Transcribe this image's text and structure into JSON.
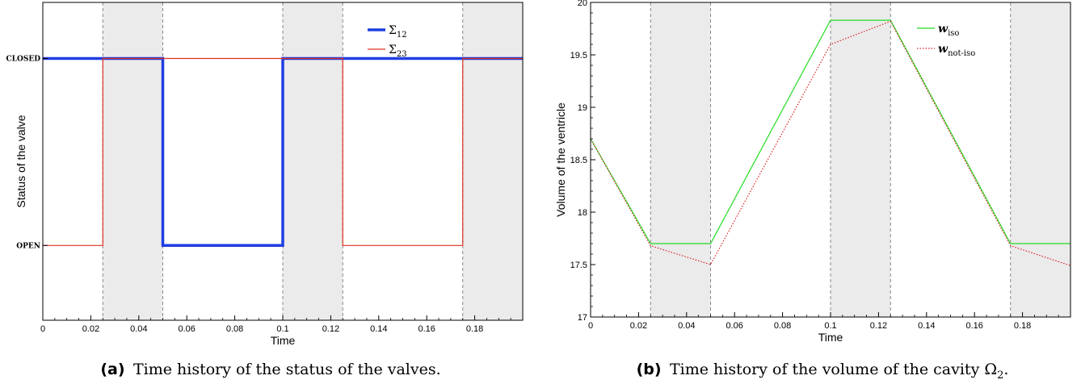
{
  "captions": [
    {
      "label": "(a)",
      "text": "Time history of the status of the valves."
    },
    {
      "label": "(b)",
      "text": "Time history of the volume of the cavity Ω",
      "sub": "2",
      "end": "."
    }
  ],
  "chart_data": [
    {
      "type": "line",
      "xlabel": "Time",
      "ylabel": "Status of the valve",
      "xlim": [
        0,
        0.2
      ],
      "x_ticks": [
        "0",
        "0.02",
        "0.04",
        "0.06",
        "0.08",
        "0.1",
        "0.12",
        "0.14",
        "0.16",
        "0.18"
      ],
      "x_tick_values": [
        0,
        0.02,
        0.04,
        0.06,
        0.08,
        0.1,
        0.12,
        0.14,
        0.16,
        0.18
      ],
      "ylim": [
        -0.4,
        1.3
      ],
      "y_categories": [
        {
          "label": "CLOSED",
          "value": 1
        },
        {
          "label": "OPEN",
          "value": 0
        }
      ],
      "shaded_intervals": [
        [
          0.025,
          0.05
        ],
        [
          0.1,
          0.125
        ],
        [
          0.175,
          0.2
        ]
      ],
      "vertical_dashed_lines": [
        0.025,
        0.05,
        0.1,
        0.125,
        0.175
      ],
      "legend_position": "top-right",
      "series": [
        {
          "name": "Σ",
          "name_sub": "12",
          "color": "#1f3fe0",
          "style": "solid-thick",
          "x": [
            0,
            0.05,
            0.05,
            0.1,
            0.1,
            0.2
          ],
          "y": [
            1,
            1,
            0,
            0,
            1,
            1
          ]
        },
        {
          "name": "Σ",
          "name_sub": "23",
          "color": "#e03020",
          "style": "solid",
          "x": [
            0,
            0.025,
            0.025,
            0.125,
            0.125,
            0.175,
            0.175,
            0.2
          ],
          "y": [
            0,
            0,
            1,
            1,
            0,
            0,
            1,
            1
          ]
        }
      ]
    },
    {
      "type": "line",
      "xlabel": "Time",
      "ylabel": "Volume of the ventricle",
      "xlim": [
        0,
        0.2
      ],
      "x_ticks": [
        "0",
        "0.02",
        "0.04",
        "0.06",
        "0.08",
        "0.1",
        "0.12",
        "0.14",
        "0.16",
        "0.18"
      ],
      "x_tick_values": [
        0,
        0.02,
        0.04,
        0.06,
        0.08,
        0.1,
        0.12,
        0.14,
        0.16,
        0.18
      ],
      "ylim": [
        17,
        20
      ],
      "y_ticks": [
        "17",
        "17.5",
        "18",
        "18.5",
        "19",
        "19.5",
        "20"
      ],
      "y_tick_values": [
        17,
        17.5,
        18,
        18.5,
        19,
        19.5,
        20
      ],
      "shaded_intervals": [
        [
          0.025,
          0.05
        ],
        [
          0.1,
          0.125
        ],
        [
          0.175,
          0.2
        ]
      ],
      "vertical_dashed_lines": [
        0.025,
        0.05,
        0.1,
        0.125,
        0.175
      ],
      "legend_position": "top-right",
      "series": [
        {
          "name": "w",
          "name_sub": "iso",
          "color": "#22dd22",
          "style": "solid",
          "x": [
            0,
            0.025,
            0.05,
            0.1,
            0.125,
            0.175,
            0.2
          ],
          "y": [
            18.7,
            17.7,
            17.7,
            19.83,
            19.83,
            17.7,
            17.7
          ]
        },
        {
          "name": "w",
          "name_sub": "not-iso",
          "color": "#dd2222",
          "style": "dotted",
          "x": [
            0,
            0.025,
            0.05,
            0.1,
            0.125,
            0.175,
            0.2
          ],
          "y": [
            18.7,
            17.68,
            17.5,
            19.6,
            19.82,
            17.68,
            17.49
          ]
        }
      ]
    }
  ]
}
